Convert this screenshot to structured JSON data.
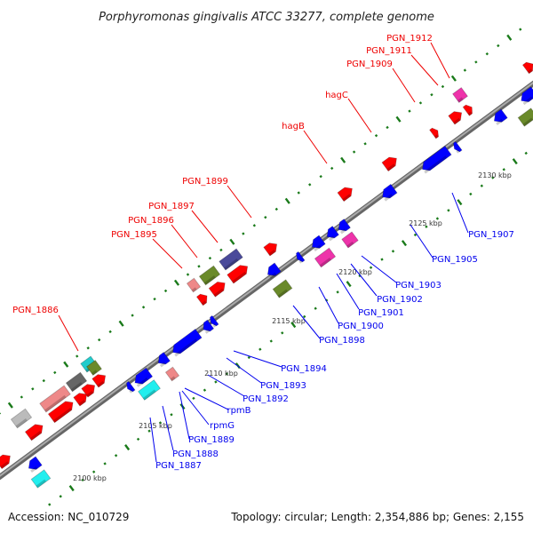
{
  "title": "Porphyromonas gingivalis ATCC 33277, complete genome",
  "footer": {
    "accession": "Accession: NC_010729",
    "summary": "Topology: circular; Length: 2,354,886 bp; Genes: 2,155"
  },
  "scale_labels": [
    "2100 kbp",
    "2105 kbp",
    "2110 kbp",
    "2115 kbp",
    "2120 kbp",
    "2125 kbp",
    "2130 kbp"
  ],
  "forward_labels": [
    "PGN_1886",
    "PGN_1895",
    "PGN_1896",
    "PGN_1897",
    "PGN_1899",
    "hagB",
    "hagC",
    "PGN_1909",
    "PGN_1911",
    "PGN_1912"
  ],
  "reverse_labels": [
    "PGN_1887",
    "PGN_1888",
    "PGN_1889",
    "rpmG",
    "rpmB",
    "PGN_1892",
    "PGN_1893",
    "PGN_1894",
    "PGN_1898",
    "PGN_1900",
    "PGN_1901",
    "PGN_1902",
    "PGN_1903",
    "PGN_1905",
    "PGN_1907"
  ],
  "colors": {
    "forward": "#ff0000",
    "reverse": "#0000ff",
    "backbone": "#888888",
    "ticks": "#1a7a1a"
  }
}
